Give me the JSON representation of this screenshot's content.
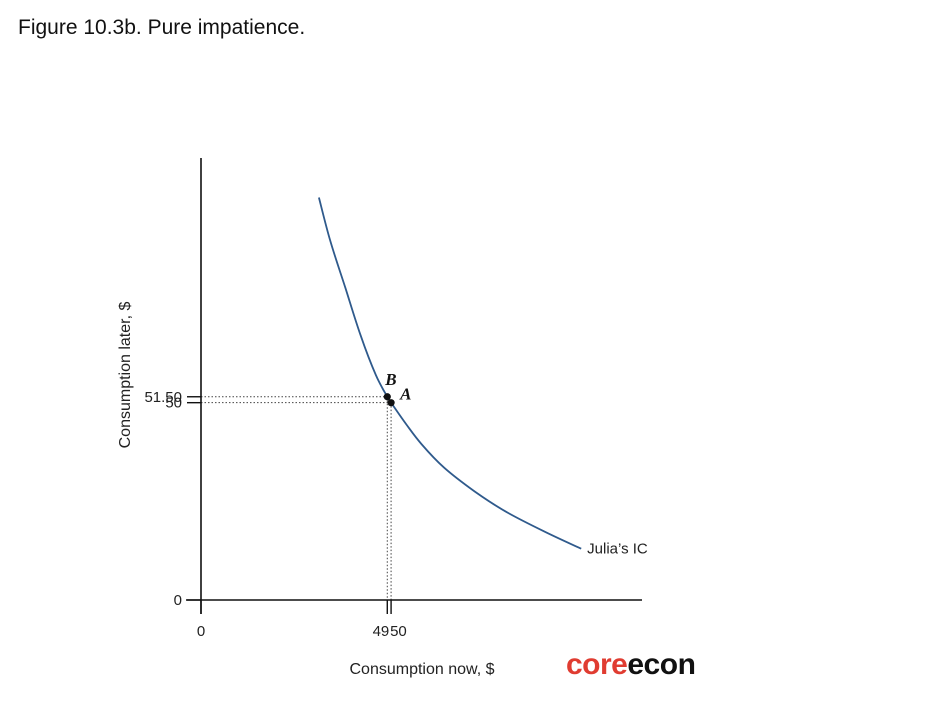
{
  "figure": {
    "title": "Figure 10.3b. Pure impatience."
  },
  "logo": {
    "part1": "core",
    "part2": "econ",
    "color1": "#e03c31",
    "color2": "#111111"
  },
  "chart_data": {
    "type": "line",
    "title": "Figure 10.3b. Pure impatience.",
    "xlabel": "Consumption now, $",
    "ylabel": "Consumption later, $",
    "x_ticks": [
      {
        "value": 0,
        "label": "0"
      },
      {
        "value": 49,
        "label": "49"
      },
      {
        "value": 50,
        "label": "50"
      }
    ],
    "y_ticks": [
      {
        "value": 0,
        "label": "0"
      },
      {
        "value": 50,
        "label": "50"
      },
      {
        "value": 51.5,
        "label": "51.50"
      }
    ],
    "xlim": [
      0,
      116
    ],
    "ylim": [
      0,
      112
    ],
    "grid": false,
    "series": [
      {
        "name": "Julia’s IC",
        "color": "#2f5a8c",
        "x": [
          31,
          34,
          38,
          42,
          46,
          49,
          50,
          54,
          58,
          64,
          72,
          80,
          90,
          100
        ],
        "y": [
          102,
          91,
          79,
          67,
          57,
          51.5,
          50,
          44.5,
          39.5,
          33.5,
          27.5,
          22.5,
          17.5,
          13
        ]
      }
    ],
    "points": [
      {
        "label": "B",
        "x": 49,
        "y": 51.5
      },
      {
        "label": "A",
        "x": 50,
        "y": 50
      }
    ]
  }
}
